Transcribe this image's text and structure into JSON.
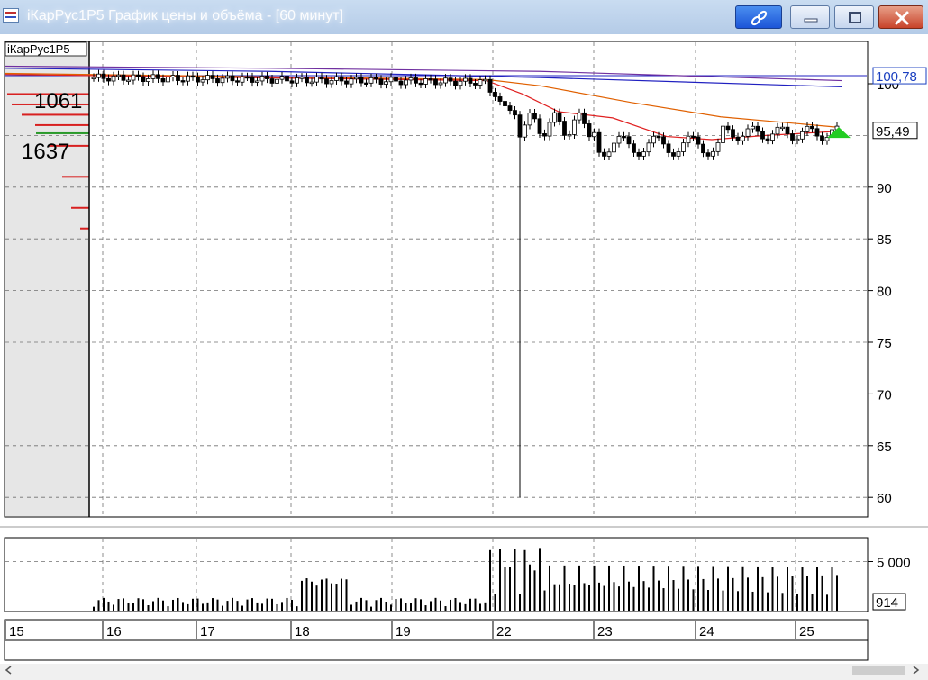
{
  "window": {
    "title": "iКарРус1Р5 График цены и объёма - [60 минут]"
  },
  "chart_data": [
    {
      "type": "candlestick",
      "instrument": "iКарРус1Р5",
      "ylim": [
        58,
        106
      ],
      "y_ticks": [
        "60",
        "65",
        "70",
        "75",
        "80",
        "85",
        "90",
        "100"
      ],
      "last_price_label": "95,49",
      "upper_price_label": "100,78",
      "last_price": 95.49,
      "upper_price": 100.78,
      "depth_labels": [
        "1061",
        "1637"
      ],
      "depth_colors": {
        "ask": "#d82020",
        "bid": "#2a9a2a"
      },
      "grid": true,
      "signal_marker": {
        "shape": "triangle-up",
        "color": "#22cc22",
        "price": 95.2
      },
      "series_colors": {
        "candles": "#000000",
        "line1": "#7030a0",
        "line2": "#2020c0",
        "line3": "#e06000",
        "line4": "#e02020"
      }
    },
    {
      "type": "bar",
      "name": "volume",
      "ylim": [
        0,
        7000
      ],
      "y_ticks": [
        "5 000"
      ],
      "last_volume_label": "914",
      "last_volume": 914,
      "color": "#000000"
    }
  ],
  "time_axis": {
    "labels": [
      "15",
      "16",
      "17",
      "18",
      "19",
      "22",
      "23",
      "24",
      "25"
    ]
  }
}
